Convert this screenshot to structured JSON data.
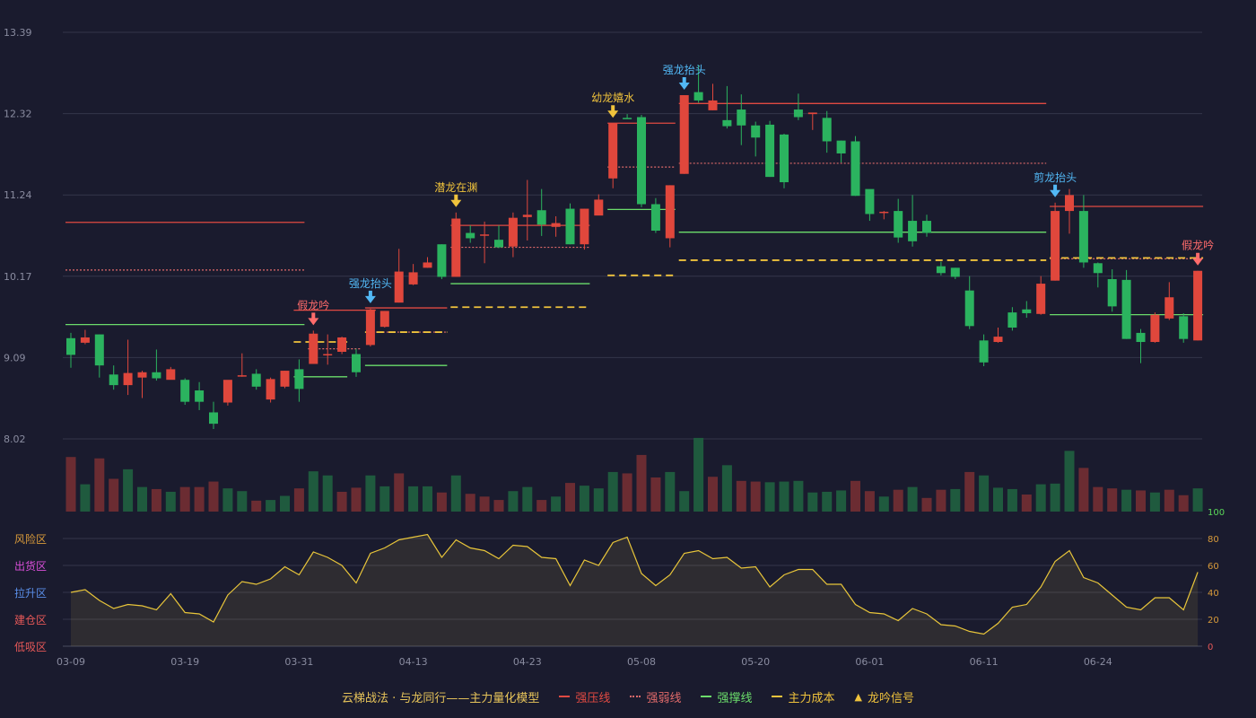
{
  "chart_data": {
    "type": "candlestick",
    "price_axis": {
      "ticks": [
        "13.39",
        "12.32",
        "11.24",
        "10.17",
        "9.09",
        "8.02"
      ],
      "range": [
        8.02,
        13.39
      ]
    },
    "x_ticks": [
      {
        "i": 0,
        "label": "03-09"
      },
      {
        "i": 8,
        "label": "03-19"
      },
      {
        "i": 16,
        "label": "03-31"
      },
      {
        "i": 24,
        "label": "04-13"
      },
      {
        "i": 32,
        "label": "04-23"
      },
      {
        "i": 40,
        "label": "05-08"
      },
      {
        "i": 48,
        "label": "05-20"
      },
      {
        "i": 56,
        "label": "06-01"
      },
      {
        "i": 64,
        "label": "06-11"
      },
      {
        "i": 72,
        "label": "06-24"
      }
    ],
    "candles": [
      [
        9.35,
        9.13,
        9.42,
        8.96
      ],
      [
        9.29,
        9.36,
        9.46,
        9.27
      ],
      [
        9.4,
        8.99,
        9.4,
        8.83
      ],
      [
        8.87,
        8.73,
        8.99,
        8.67
      ],
      [
        8.73,
        8.89,
        9.33,
        8.6
      ],
      [
        8.83,
        8.9,
        8.92,
        8.56
      ],
      [
        8.9,
        8.82,
        9.2,
        8.79
      ],
      [
        8.8,
        8.94,
        8.97,
        8.82
      ],
      [
        8.8,
        8.51,
        8.82,
        8.47
      ],
      [
        8.66,
        8.51,
        8.77,
        8.4
      ],
      [
        8.37,
        8.22,
        8.51,
        8.15
      ],
      [
        8.5,
        8.8,
        8.79,
        8.46
      ],
      [
        8.86,
        8.86,
        9.15,
        8.84
      ],
      [
        8.88,
        8.71,
        8.94,
        8.67
      ],
      [
        8.54,
        8.81,
        8.83,
        8.5
      ],
      [
        8.71,
        8.92,
        8.92,
        8.69
      ],
      [
        8.94,
        8.68,
        9.07,
        8.51
      ],
      [
        9.01,
        9.41,
        9.45,
        9.01
      ],
      [
        9.14,
        9.14,
        9.4,
        9.0
      ],
      [
        9.17,
        9.36,
        9.37,
        9.14
      ],
      [
        9.14,
        8.9,
        9.21,
        8.84
      ],
      [
        9.26,
        9.73,
        9.74,
        9.24
      ],
      [
        9.5,
        9.71,
        9.71,
        9.49
      ],
      [
        9.82,
        10.23,
        10.53,
        9.82
      ],
      [
        10.06,
        10.22,
        10.33,
        10.05
      ],
      [
        10.28,
        10.35,
        10.42,
        10.28
      ],
      [
        10.59,
        10.16,
        10.59,
        10.13
      ],
      [
        10.16,
        10.93,
        11.01,
        10.16
      ],
      [
        10.74,
        10.67,
        10.84,
        10.61
      ],
      [
        10.71,
        10.72,
        10.89,
        10.34
      ],
      [
        10.65,
        10.55,
        10.84,
        10.54
      ],
      [
        10.56,
        10.94,
        11.01,
        10.42
      ],
      [
        10.95,
        10.98,
        11.44,
        10.64
      ],
      [
        11.04,
        10.85,
        11.32,
        10.7
      ],
      [
        10.82,
        10.87,
        10.96,
        10.69
      ],
      [
        11.06,
        10.59,
        11.13,
        10.59
      ],
      [
        10.59,
        11.06,
        11.06,
        10.52
      ],
      [
        10.97,
        11.18,
        11.25,
        11.1
      ],
      [
        11.46,
        12.19,
        12.19,
        11.33
      ],
      [
        12.26,
        12.25,
        12.31,
        12.25
      ],
      [
        12.27,
        11.12,
        12.3,
        11.08
      ],
      [
        11.12,
        10.77,
        11.2,
        10.74
      ],
      [
        10.67,
        11.37,
        11.37,
        10.55
      ],
      [
        11.52,
        12.56,
        12.56,
        11.52
      ],
      [
        12.6,
        12.49,
        12.96,
        12.46
      ],
      [
        12.36,
        12.49,
        12.71,
        12.36
      ],
      [
        12.23,
        12.15,
        12.68,
        12.12
      ],
      [
        12.37,
        12.16,
        12.57,
        11.9
      ],
      [
        12.16,
        12.0,
        12.21,
        11.75
      ],
      [
        12.17,
        11.48,
        12.22,
        11.48
      ],
      [
        12.04,
        11.41,
        12.05,
        11.33
      ],
      [
        12.37,
        12.27,
        12.58,
        12.23
      ],
      [
        12.31,
        12.33,
        12.33,
        12.1
      ],
      [
        12.26,
        11.95,
        12.35,
        11.8
      ],
      [
        11.96,
        11.79,
        11.96,
        11.67
      ],
      [
        11.95,
        11.23,
        12.02,
        11.23
      ],
      [
        11.32,
        10.99,
        11.31,
        10.9
      ],
      [
        11.02,
        11.02,
        11.03,
        10.92
      ],
      [
        11.03,
        10.68,
        11.19,
        10.61
      ],
      [
        10.9,
        10.63,
        11.24,
        10.56
      ],
      [
        10.9,
        10.74,
        10.98,
        10.69
      ],
      [
        10.3,
        10.21,
        10.36,
        10.18
      ],
      [
        10.28,
        10.16,
        10.28,
        10.13
      ],
      [
        9.98,
        9.51,
        10.17,
        9.47
      ],
      [
        9.32,
        9.03,
        9.4,
        8.98
      ],
      [
        9.3,
        9.37,
        9.49,
        9.29
      ],
      [
        9.69,
        9.49,
        9.76,
        9.45
      ],
      [
        9.73,
        9.68,
        9.84,
        9.62
      ],
      [
        9.67,
        10.07,
        10.17,
        9.66
      ],
      [
        10.11,
        11.03,
        11.14,
        10.11
      ],
      [
        11.03,
        11.24,
        11.32,
        10.73
      ],
      [
        11.03,
        10.35,
        11.24,
        10.28
      ],
      [
        10.34,
        10.21,
        10.35,
        10.02
      ],
      [
        10.13,
        9.77,
        10.26,
        9.7
      ],
      [
        10.12,
        9.34,
        10.25,
        9.34
      ],
      [
        9.42,
        9.3,
        9.47,
        9.02
      ],
      [
        9.3,
        9.66,
        9.69,
        9.29
      ],
      [
        9.61,
        9.89,
        10.09,
        9.59
      ],
      [
        9.64,
        9.34,
        9.68,
        9.29
      ],
      [
        9.32,
        10.24,
        10.24,
        9.32
      ]
    ],
    "volume": [
      [
        80,
        "up"
      ],
      [
        40,
        "down"
      ],
      [
        78,
        "up"
      ],
      [
        48,
        "up"
      ],
      [
        62,
        "down"
      ],
      [
        36,
        "down"
      ],
      [
        33,
        "up"
      ],
      [
        29,
        "down"
      ],
      [
        36,
        "up"
      ],
      [
        36,
        "up"
      ],
      [
        44,
        "up"
      ],
      [
        34,
        "down"
      ],
      [
        30,
        "down"
      ],
      [
        16,
        "up"
      ],
      [
        17,
        "down"
      ],
      [
        23,
        "down"
      ],
      [
        34,
        "up"
      ],
      [
        59,
        "down"
      ],
      [
        53,
        "down"
      ],
      [
        29,
        "up"
      ],
      [
        35,
        "up"
      ],
      [
        53,
        "down"
      ],
      [
        37,
        "down"
      ],
      [
        56,
        "up"
      ],
      [
        37,
        "down"
      ],
      [
        37,
        "down"
      ],
      [
        28,
        "up"
      ],
      [
        53,
        "down"
      ],
      [
        26,
        "up"
      ],
      [
        22,
        "up"
      ],
      [
        17,
        "up"
      ],
      [
        30,
        "down"
      ],
      [
        36,
        "down"
      ],
      [
        17,
        "up"
      ],
      [
        22,
        "down"
      ],
      [
        42,
        "up"
      ],
      [
        38,
        "down"
      ],
      [
        34,
        "down"
      ],
      [
        58,
        "down"
      ],
      [
        56,
        "up"
      ],
      [
        83,
        "up"
      ],
      [
        50,
        "up"
      ],
      [
        58,
        "down"
      ],
      [
        30,
        "down"
      ],
      [
        108,
        "down"
      ],
      [
        51,
        "up"
      ],
      [
        68,
        "down"
      ],
      [
        45,
        "up"
      ],
      [
        44,
        "up"
      ],
      [
        43,
        "down"
      ],
      [
        44,
        "down"
      ],
      [
        45,
        "down"
      ],
      [
        28,
        "down"
      ],
      [
        29,
        "down"
      ],
      [
        31,
        "down"
      ],
      [
        45,
        "up"
      ],
      [
        30,
        "up"
      ],
      [
        22,
        "down"
      ],
      [
        32,
        "up"
      ],
      [
        36,
        "down"
      ],
      [
        20,
        "up"
      ],
      [
        32,
        "up"
      ],
      [
        33,
        "down"
      ],
      [
        58,
        "up"
      ],
      [
        53,
        "down"
      ],
      [
        35,
        "down"
      ],
      [
        33,
        "down"
      ],
      [
        25,
        "up"
      ],
      [
        40,
        "down"
      ],
      [
        41,
        "down"
      ],
      [
        89,
        "down"
      ],
      [
        64,
        "up"
      ],
      [
        36,
        "up"
      ],
      [
        34,
        "up"
      ],
      [
        32,
        "down"
      ],
      [
        31,
        "up"
      ],
      [
        28,
        "down"
      ],
      [
        32,
        "up"
      ],
      [
        24,
        "up"
      ],
      [
        34,
        "down"
      ]
    ],
    "osc": {
      "zones_left": [
        "风险区",
        "出货区",
        "拉升区",
        "建仓区",
        "低吸区"
      ],
      "zone_colors": [
        "#d89a3a",
        "#d94fd9",
        "#5a8ee8",
        "#e65858",
        "#e65858"
      ],
      "ticks_right": [
        "100",
        "80",
        "60",
        "40",
        "20",
        "0"
      ],
      "values": [
        40,
        42,
        34,
        28,
        31,
        30,
        27,
        39,
        25,
        24,
        18,
        38,
        48,
        46,
        50,
        59,
        53,
        70,
        66,
        60,
        47,
        69,
        73,
        79,
        81,
        83,
        66,
        79,
        73,
        71,
        65,
        75,
        74,
        66,
        65,
        45,
        64,
        60,
        77,
        81,
        54,
        45,
        53,
        69,
        71,
        65,
        66,
        58,
        59,
        44,
        53,
        57,
        57,
        46,
        46,
        31,
        25,
        24,
        19,
        28,
        24,
        16,
        15,
        11,
        9,
        17,
        29,
        31,
        44,
        63,
        71,
        51,
        47,
        38,
        29,
        27,
        36,
        36,
        27,
        55
      ]
    },
    "lines": {
      "strong_pressure": [
        [
          0,
          16,
          10.88
        ],
        [
          16,
          21,
          9.72
        ],
        [
          21,
          26,
          9.75
        ],
        [
          27,
          36,
          10.84
        ],
        [
          38,
          42,
          12.19
        ],
        [
          43,
          68,
          12.45
        ],
        [
          69,
          79,
          11.09
        ]
      ],
      "weak_line": [
        [
          0,
          16,
          10.25
        ],
        [
          17,
          20,
          9.21
        ],
        [
          21,
          26,
          9.43
        ],
        [
          27,
          36,
          10.55
        ],
        [
          38,
          42,
          11.61
        ],
        [
          43,
          68,
          11.66
        ],
        [
          69,
          79,
          10.4
        ]
      ],
      "support": [
        [
          0,
          16,
          9.53
        ],
        [
          16,
          19,
          8.84
        ],
        [
          21,
          26,
          8.99
        ],
        [
          27,
          36,
          10.07
        ],
        [
          38,
          42,
          11.05
        ],
        [
          43,
          68,
          10.75
        ],
        [
          69,
          79,
          9.66
        ]
      ],
      "cost": [
        [
          16,
          19,
          9.3
        ],
        [
          21,
          26,
          9.43
        ],
        [
          27,
          36,
          9.76
        ],
        [
          38,
          42,
          10.18
        ],
        [
          43,
          68,
          10.38
        ],
        [
          69,
          79,
          10.41
        ]
      ]
    },
    "signals": [
      {
        "i": 17,
        "text": "假龙吟",
        "kind": "false"
      },
      {
        "i": 21,
        "text": "强龙抬头",
        "kind": "strong"
      },
      {
        "i": 27,
        "text": "潜龙在渊",
        "kind": "hidden"
      },
      {
        "i": 38,
        "text": "幼龙嬉水",
        "kind": "hidden"
      },
      {
        "i": 43,
        "text": "强龙抬头",
        "kind": "strong"
      },
      {
        "i": 69,
        "text": "剪龙抬头",
        "kind": "strong"
      },
      {
        "i": 79,
        "text": "假龙吟",
        "kind": "false"
      }
    ],
    "colors": {
      "up": "#e0473c",
      "down": "#2bb35f",
      "pressure": "#e04a42",
      "weak": "#e06a6a",
      "support": "#6bdc6b",
      "cost": "#f0c33c",
      "osc": "#e8c53a",
      "strong_sig": "#52b8f5",
      "hidden_sig": "#f0c33c",
      "false_sig": "#ff6b6b"
    }
  },
  "legend": {
    "title": "云梯战法 · 与龙同行——主力量化模型",
    "items": [
      {
        "label": "强压线",
        "color": "#e04a42",
        "style": "solid"
      },
      {
        "label": "强弱线",
        "color": "#e06a6a",
        "style": "dotted"
      },
      {
        "label": "强撑线",
        "color": "#6bdc6b",
        "style": "solid"
      },
      {
        "label": "主力成本",
        "color": "#f0c33c",
        "style": "dashed"
      },
      {
        "label": "龙吟信号",
        "color": "#f0c33c",
        "style": "triangle"
      }
    ]
  }
}
